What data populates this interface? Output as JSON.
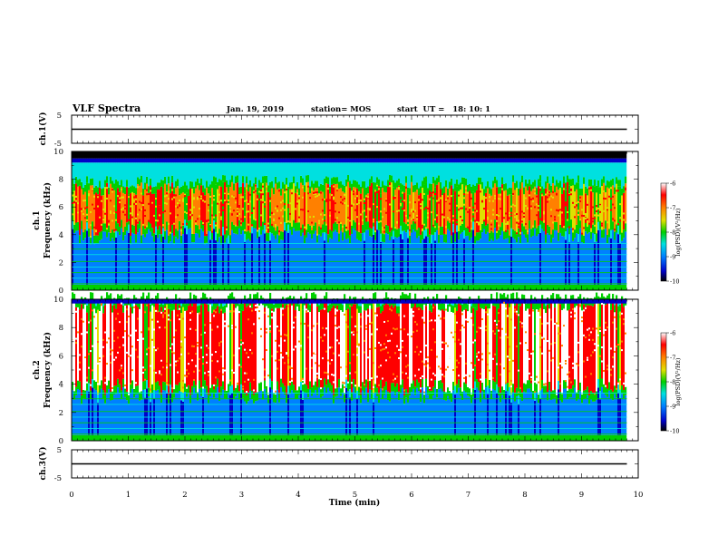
{
  "header": {
    "title": "VLF Spectra",
    "date": "Jan. 19, 2019",
    "station": "station= MOS",
    "start": "start  UT =   18: 10: 1"
  },
  "colors": {
    "background": "#ffffff",
    "axis": "#000000",
    "spectrogram_scale": [
      "#000000",
      "#0000c8",
      "#0080ff",
      "#00e0e0",
      "#00d000",
      "#e0e000",
      "#ff8000",
      "#ff0000",
      "#ffffff"
    ]
  },
  "chart_data": [
    {
      "id": "ch1-voltage",
      "type": "line",
      "ylabel": "ch.1(V)",
      "ylim": [
        -5,
        5
      ],
      "yticks": [
        "5",
        "-5"
      ],
      "xlim": [
        0,
        10
      ],
      "series": [
        {
          "x": [
            0,
            9.8
          ],
          "y": [
            0,
            0
          ]
        }
      ]
    },
    {
      "id": "ch1-spectrogram",
      "type": "heatmap",
      "ylabel": "ch.1\nFrequency (kHz)",
      "ylim": [
        0,
        10
      ],
      "yticks": [
        "0",
        "2",
        "4",
        "6",
        "8",
        "10"
      ],
      "xlim": [
        0,
        10
      ],
      "data_extent_min": 9.8,
      "colorbar": {
        "label": "log(PSD)(V²/Hz)",
        "ticks": [
          "-6",
          "-7",
          "-8",
          "-9",
          "-10"
        ]
      },
      "profile": {
        "noise_floor_khz": 9.5,
        "emission_low_khz": 4.5,
        "emission_high_khz": 7.8,
        "strength": "medium"
      }
    },
    {
      "id": "ch2-spectrogram",
      "type": "heatmap",
      "ylabel": "ch.2\nFrequency (kHz)",
      "ylim": [
        0,
        10
      ],
      "yticks": [
        "0",
        "2",
        "4",
        "6",
        "8",
        "10"
      ],
      "xlim": [
        0,
        10
      ],
      "data_extent_min": 9.8,
      "colorbar": {
        "label": "log(PSD)(V²/Hz)",
        "ticks": [
          "-6",
          "-7",
          "-8",
          "-9",
          "-10"
        ]
      },
      "profile": {
        "noise_floor_khz": 10,
        "emission_low_khz": 3.8,
        "emission_high_khz": 10,
        "strength": "high"
      }
    },
    {
      "id": "ch3-voltage",
      "type": "line",
      "ylabel": "ch.3(V)",
      "ylim": [
        -5,
        5
      ],
      "yticks": [
        "5",
        "-5"
      ],
      "xlim": [
        0,
        10
      ],
      "xlabel": "Time (min)",
      "xticks": [
        "0",
        "1",
        "2",
        "3",
        "4",
        "5",
        "6",
        "7",
        "8",
        "9",
        "10"
      ],
      "series": [
        {
          "x": [
            0,
            9.8
          ],
          "y": [
            0,
            0
          ]
        }
      ]
    }
  ]
}
